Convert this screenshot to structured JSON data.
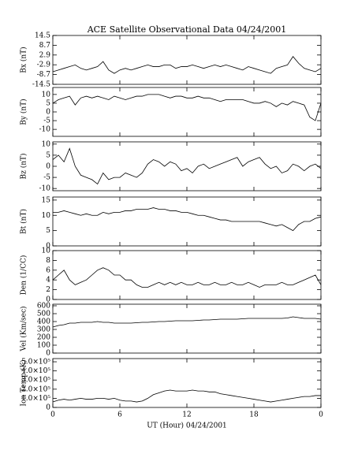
{
  "chart_data": [
    {
      "type": "line",
      "title": "ACE Satellite Observational Data   04/24/2001",
      "ylabel": "Bx (nT)",
      "color": "#000000",
      "xlim": [
        0,
        24
      ],
      "xticks": [
        0,
        6,
        12,
        18,
        24
      ],
      "ylim": [
        -14.5,
        14.5
      ],
      "yticks": [
        14.5,
        8.7,
        2.9,
        -2.9,
        -8.7,
        -14.5
      ],
      "x": [
        0,
        0.5,
        1,
        1.5,
        2,
        2.5,
        3,
        3.5,
        4,
        4.5,
        5,
        5.5,
        6,
        6.5,
        7,
        7.5,
        8,
        8.5,
        9,
        9.5,
        10,
        10.5,
        11,
        11.5,
        12,
        12.5,
        13,
        13.5,
        14,
        14.5,
        15,
        15.5,
        16,
        16.5,
        17,
        17.5,
        18,
        18.5,
        19,
        19.5,
        20,
        20.5,
        21,
        21.5,
        22,
        22.5,
        23,
        23.5,
        24
      ],
      "values": [
        -7,
        -6,
        -5,
        -4,
        -3,
        -5,
        -6,
        -5,
        -4,
        -1,
        -6,
        -8,
        -6,
        -5,
        -6,
        -5,
        -4,
        -3,
        -4,
        -4,
        -3,
        -3,
        -5,
        -4,
        -4,
        -3,
        -4,
        -5,
        -4,
        -3,
        -4,
        -3,
        -4,
        -5,
        -6,
        -4,
        -5,
        -6,
        -7,
        -8,
        -5,
        -4,
        -3,
        2,
        -2,
        -5,
        -6,
        -7,
        -5
      ]
    },
    {
      "type": "line",
      "ylabel": "By (nT)",
      "color": "#000000",
      "xlim": [
        0,
        24
      ],
      "xticks": [
        0,
        6,
        12,
        18,
        24
      ],
      "ylim": [
        -14,
        14
      ],
      "yticks": [
        10,
        5,
        0,
        -5,
        -10
      ],
      "x": [
        0,
        0.5,
        1,
        1.5,
        2,
        2.5,
        3,
        3.5,
        4,
        4.5,
        5,
        5.5,
        6,
        6.5,
        7,
        7.5,
        8,
        8.5,
        9,
        9.5,
        10,
        10.5,
        11,
        11.5,
        12,
        12.5,
        13,
        13.5,
        14,
        14.5,
        15,
        15.5,
        16,
        16.5,
        17,
        17.5,
        18,
        18.5,
        19,
        19.5,
        20,
        20.5,
        21,
        21.5,
        22,
        22.5,
        23,
        23.5,
        24
      ],
      "values": [
        5,
        7,
        8,
        9,
        4,
        8,
        9,
        8,
        9,
        8,
        7,
        9,
        8,
        7,
        8,
        9,
        9,
        10,
        10,
        10,
        9,
        8,
        9,
        9,
        8,
        8,
        9,
        8,
        8,
        7,
        6,
        7,
        7,
        7,
        7,
        6,
        5,
        5,
        6,
        5,
        3,
        5,
        4,
        6,
        5,
        4,
        -3,
        -5,
        5
      ]
    },
    {
      "type": "line",
      "ylabel": "Bz (nT)",
      "color": "#000000",
      "xlim": [
        0,
        24
      ],
      "xticks": [
        0,
        6,
        12,
        18,
        24
      ],
      "ylim": [
        -11,
        11
      ],
      "yticks": [
        10,
        5,
        0,
        -5,
        -10
      ],
      "x": [
        0,
        0.5,
        1,
        1.5,
        2,
        2.5,
        3,
        3.5,
        4,
        4.5,
        5,
        5.5,
        6,
        6.5,
        7,
        7.5,
        8,
        8.5,
        9,
        9.5,
        10,
        10.5,
        11,
        11.5,
        12,
        12.5,
        13,
        13.5,
        14,
        14.5,
        15,
        15.5,
        16,
        16.5,
        17,
        17.5,
        18,
        18.5,
        19,
        19.5,
        20,
        20.5,
        21,
        21.5,
        22,
        22.5,
        23,
        23.5,
        24
      ],
      "values": [
        3,
        5,
        2,
        8,
        0,
        -4,
        -5,
        -6,
        -8,
        -3,
        -6,
        -5,
        -5,
        -3,
        -4,
        -5,
        -3,
        1,
        3,
        2,
        0,
        2,
        1,
        -2,
        -1,
        -3,
        0,
        1,
        -1,
        0,
        1,
        2,
        3,
        4,
        0,
        2,
        3,
        4,
        1,
        -1,
        0,
        -3,
        -2,
        1,
        0,
        -2,
        0,
        1,
        -1
      ]
    },
    {
      "type": "line",
      "ylabel": "Bt (nT)",
      "color": "#000000",
      "xlim": [
        0,
        24
      ],
      "xticks": [
        0,
        6,
        12,
        18,
        24
      ],
      "ylim": [
        0,
        16
      ],
      "yticks": [
        15,
        10,
        5,
        0
      ],
      "x": [
        0,
        0.5,
        1,
        1.5,
        2,
        2.5,
        3,
        3.5,
        4,
        4.5,
        5,
        5.5,
        6,
        6.5,
        7,
        7.5,
        8,
        8.5,
        9,
        9.5,
        10,
        10.5,
        11,
        11.5,
        12,
        12.5,
        13,
        13.5,
        14,
        14.5,
        15,
        15.5,
        16,
        16.5,
        17,
        17.5,
        18,
        18.5,
        19,
        19.5,
        20,
        20.5,
        21,
        21.5,
        22,
        22.5,
        23,
        23.5,
        24
      ],
      "values": [
        11,
        11,
        11.5,
        11,
        10.5,
        10,
        10.5,
        10,
        10,
        11,
        10.5,
        11,
        11,
        11.5,
        11.5,
        12,
        12,
        12,
        12.5,
        12,
        12,
        11.5,
        11.5,
        11,
        11,
        10.5,
        10,
        10,
        9.5,
        9,
        8.5,
        8.5,
        8,
        8,
        8,
        8,
        8,
        8,
        7.5,
        7,
        6.5,
        7,
        6,
        5,
        7,
        8,
        8,
        9,
        9.5
      ]
    },
    {
      "type": "line",
      "ylabel": "Den (1/CC)",
      "color": "#000000",
      "xlim": [
        0,
        24
      ],
      "xticks": [
        0,
        6,
        12,
        18,
        24
      ],
      "ylim": [
        0,
        10
      ],
      "yticks": [
        10,
        8,
        6,
        4,
        2,
        0
      ],
      "x": [
        0,
        0.5,
        1,
        1.5,
        2,
        2.5,
        3,
        3.5,
        4,
        4.5,
        5,
        5.5,
        6,
        6.5,
        7,
        7.5,
        8,
        8.5,
        9,
        9.5,
        10,
        10.5,
        11,
        11.5,
        12,
        12.5,
        13,
        13.5,
        14,
        14.5,
        15,
        15.5,
        16,
        16.5,
        17,
        17.5,
        18,
        18.5,
        19,
        19.5,
        20,
        20.5,
        21,
        21.5,
        22,
        22.5,
        23,
        23.5,
        24
      ],
      "values": [
        4,
        5,
        6,
        4,
        3,
        3.5,
        4,
        5,
        6,
        6.5,
        6,
        5,
        5,
        4,
        4,
        3,
        2.5,
        2.5,
        3,
        3.5,
        3,
        3.5,
        3,
        3.5,
        3,
        3,
        3.5,
        3,
        3,
        3.5,
        3,
        3,
        3.5,
        3,
        3,
        3.5,
        3,
        2.5,
        3,
        3,
        3,
        3.5,
        3,
        3,
        3.5,
        4,
        4.5,
        5,
        3
      ]
    },
    {
      "type": "line",
      "ylabel": "Vel (Km/sec)",
      "color": "#000000",
      "xlim": [
        0,
        24
      ],
      "xticks": [
        0,
        6,
        12,
        18,
        24
      ],
      "ylim": [
        0,
        620
      ],
      "yticks": [
        600,
        500,
        400,
        300,
        200,
        100,
        0
      ],
      "x": [
        0,
        0.5,
        1,
        1.5,
        2,
        2.5,
        3,
        3.5,
        4,
        4.5,
        5,
        5.5,
        6,
        6.5,
        7,
        7.5,
        8,
        8.5,
        9,
        9.5,
        10,
        10.5,
        11,
        11.5,
        12,
        12.5,
        13,
        13.5,
        14,
        14.5,
        15,
        15.5,
        16,
        16.5,
        17,
        17.5,
        18,
        18.5,
        19,
        19.5,
        20,
        20.5,
        21,
        21.5,
        22,
        22.5,
        23,
        23.5,
        24
      ],
      "values": [
        330,
        350,
        360,
        380,
        380,
        390,
        390,
        390,
        400,
        390,
        390,
        380,
        380,
        380,
        380,
        385,
        390,
        390,
        395,
        400,
        400,
        405,
        410,
        410,
        410,
        410,
        415,
        420,
        420,
        425,
        430,
        430,
        430,
        430,
        435,
        440,
        440,
        440,
        440,
        440,
        440,
        440,
        445,
        460,
        450,
        440,
        440,
        440,
        430
      ]
    },
    {
      "type": "line",
      "ylabel": "Ion Temp (K)",
      "xlabel": "UT (Hour)  04/24/2001",
      "color": "#000000",
      "xlim": [
        0,
        24
      ],
      "xticks": [
        0,
        6,
        12,
        18,
        {
          "value": 24,
          "label": "0"
        }
      ],
      "ylim": [
        0,
        535000
      ],
      "yticks": [
        {
          "value": 500000,
          "label": "5.0×10⁵"
        },
        {
          "value": 400000,
          "label": "4.0×10⁵"
        },
        {
          "value": 300000,
          "label": "3.0×10⁵"
        },
        {
          "value": 200000,
          "label": "2.0×10⁵"
        },
        {
          "value": 100000,
          "label": "1.0×10⁵"
        },
        0
      ],
      "x": [
        0,
        0.5,
        1,
        1.5,
        2,
        2.5,
        3,
        3.5,
        4,
        4.5,
        5,
        5.5,
        6,
        6.5,
        7,
        7.5,
        8,
        8.5,
        9,
        9.5,
        10,
        10.5,
        11,
        11.5,
        12,
        12.5,
        13,
        13.5,
        14,
        14.5,
        15,
        15.5,
        16,
        16.5,
        17,
        17.5,
        18,
        18.5,
        19,
        19.5,
        20,
        20.5,
        21,
        21.5,
        22,
        22.5,
        23,
        23.5,
        24
      ],
      "values": [
        60000,
        80000,
        90000,
        80000,
        90000,
        100000,
        90000,
        90000,
        100000,
        100000,
        90000,
        100000,
        80000,
        70000,
        70000,
        60000,
        70000,
        100000,
        140000,
        160000,
        180000,
        190000,
        180000,
        180000,
        180000,
        190000,
        180000,
        180000,
        170000,
        170000,
        150000,
        140000,
        130000,
        120000,
        110000,
        100000,
        90000,
        80000,
        70000,
        60000,
        70000,
        80000,
        90000,
        100000,
        110000,
        120000,
        120000,
        130000,
        130000
      ]
    }
  ]
}
